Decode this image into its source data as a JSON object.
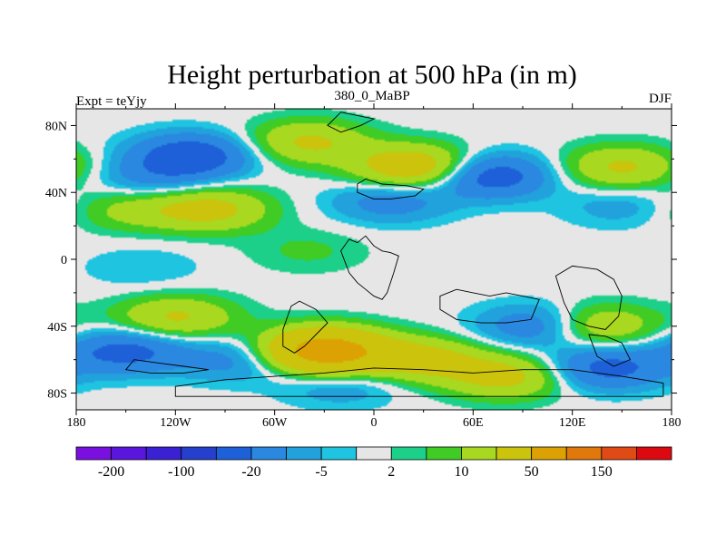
{
  "chart_data": {
    "type": "heatmap",
    "title": "Height perturbation at 500 hPa (in m)",
    "subtitle_left": "Expt = teYjy",
    "subtitle_center": "380_0_MaBP",
    "subtitle_right": "DJF",
    "xlim": [
      -180,
      180
    ],
    "ylim": [
      -90,
      90
    ],
    "x_ticks": [
      {
        "value": -180,
        "label": "180"
      },
      {
        "value": -120,
        "label": "120W"
      },
      {
        "value": -60,
        "label": "60W"
      },
      {
        "value": 0,
        "label": "0"
      },
      {
        "value": 60,
        "label": "60E"
      },
      {
        "value": 120,
        "label": "120E"
      },
      {
        "value": 180,
        "label": "180"
      }
    ],
    "y_ticks": [
      {
        "value": 80,
        "label": "80N"
      },
      {
        "value": 40,
        "label": "40N"
      },
      {
        "value": 0,
        "label": "0"
      },
      {
        "value": -40,
        "label": "40S"
      },
      {
        "value": -80,
        "label": "80S"
      }
    ],
    "colorbar": {
      "levels": [
        -200,
        -150,
        -100,
        -50,
        -20,
        -10,
        -5,
        -2,
        2,
        5,
        10,
        20,
        50,
        100,
        150,
        200
      ],
      "labels": [
        "-200",
        "-100",
        "-20",
        "-5",
        "2",
        "10",
        "50",
        "150"
      ],
      "colors": [
        "#7a10e0",
        "#5a16dc",
        "#3a22d4",
        "#2440cc",
        "#1e60d8",
        "#2a88e0",
        "#22a2dc",
        "#1ec4e0",
        "#e6e6e6",
        "#1cd08a",
        "#40cc24",
        "#a8d820",
        "#ccc40c",
        "#dca204",
        "#e0780c",
        "#e04a14",
        "#dc0a10"
      ]
    },
    "features": [
      {
        "lon": -110,
        "lat": 62,
        "value": -30
      },
      {
        "lon": -135,
        "lat": 48,
        "value": -12
      },
      {
        "lon": -100,
        "lat": 30,
        "value": 25
      },
      {
        "lon": -150,
        "lat": 30,
        "value": 12
      },
      {
        "lon": -40,
        "lat": 70,
        "value": 22
      },
      {
        "lon": 25,
        "lat": 55,
        "value": 35
      },
      {
        "lon": 10,
        "lat": 35,
        "value": -15
      },
      {
        "lon": 70,
        "lat": 50,
        "value": -30
      },
      {
        "lon": 150,
        "lat": 55,
        "value": 22
      },
      {
        "lon": 150,
        "lat": 32,
        "value": -8
      },
      {
        "lon": -40,
        "lat": 5,
        "value": 6
      },
      {
        "lon": -140,
        "lat": -5,
        "value": -5
      },
      {
        "lon": -120,
        "lat": -35,
        "value": 22
      },
      {
        "lon": -150,
        "lat": -55,
        "value": -25
      },
      {
        "lon": -80,
        "lat": -60,
        "value": -15
      },
      {
        "lon": -30,
        "lat": -55,
        "value": 70
      },
      {
        "lon": 30,
        "lat": -60,
        "value": 25
      },
      {
        "lon": 80,
        "lat": -70,
        "value": 25
      },
      {
        "lon": 100,
        "lat": -40,
        "value": -20
      },
      {
        "lon": 135,
        "lat": -40,
        "value": 22
      },
      {
        "lon": 140,
        "lat": -65,
        "value": -25
      },
      {
        "lon": -20,
        "lat": -75,
        "value": -10
      }
    ]
  }
}
